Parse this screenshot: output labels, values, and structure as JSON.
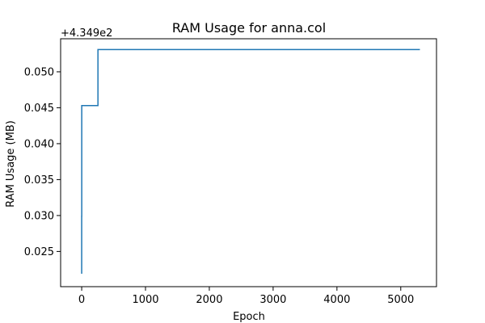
{
  "chart_data": {
    "type": "line",
    "title": "RAM Usage for anna.col",
    "xlabel": "Epoch",
    "ylabel": "RAM Usage (MB)",
    "y_offset_label": "+4.349e2",
    "y_offset": 434.9,
    "xlim": [
      -330,
      5560
    ],
    "ylim": [
      0.0201,
      0.0546
    ],
    "x_ticks": [
      0,
      1000,
      2000,
      3000,
      4000,
      5000
    ],
    "x_tick_labels": [
      "0",
      "1000",
      "2000",
      "3000",
      "4000",
      "5000"
    ],
    "y_ticks": [
      0.025,
      0.03,
      0.035,
      0.04,
      0.045,
      0.05
    ],
    "y_tick_labels": [
      "0.025",
      "0.030",
      "0.035",
      "0.040",
      "0.045",
      "0.050"
    ],
    "grid": false,
    "series": [
      {
        "color": "#1f77b4",
        "x": [
          0,
          0,
          1,
          1,
          255,
          255,
          5300
        ],
        "y": [
          0.0219,
          0.0299,
          0.0299,
          0.0453,
          0.0453,
          0.0531,
          0.0531
        ]
      }
    ]
  }
}
